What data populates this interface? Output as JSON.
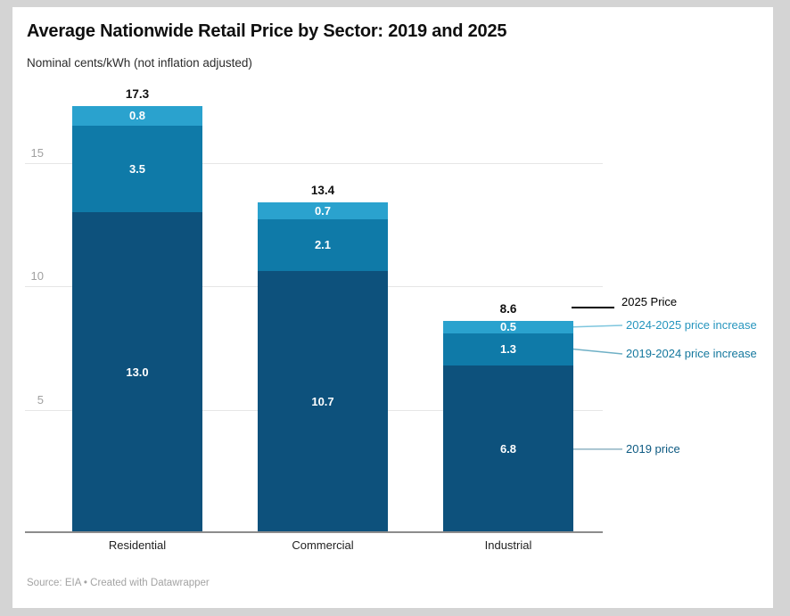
{
  "page": {
    "background_color": "#d4d4d4",
    "card_color": "#ffffff"
  },
  "header": {
    "title": "Average Nationwide Retail Price by Sector: 2019 and 2025",
    "subtitle": "Nominal cents/kWh (not inflation adjusted)"
  },
  "footer": {
    "source": "Source: EIA • Created with Datawrapper"
  },
  "legend": {
    "position": "right",
    "items": [
      {
        "label": "2025 Price",
        "text_color": "#000000",
        "line_color": "#000000",
        "key": "black-line"
      },
      {
        "label": "2024-2025 price increase",
        "text_color": "#2695be",
        "line_color": "#7ec6de",
        "key": "connector"
      },
      {
        "label": "2019-2024 price increase",
        "text_color": "#15789e",
        "line_color": "#6fb0c6",
        "key": "connector"
      },
      {
        "label": "2019 price",
        "text_color": "#0d5a82",
        "line_color": "#8fb3c3",
        "key": "connector"
      }
    ]
  },
  "chart_data": {
    "type": "bar",
    "stacked": true,
    "title": "Average Nationwide Retail Price by Sector: 2019 and 2025",
    "subtitle": "Nominal cents/kWh (not inflation adjusted)",
    "categories": [
      "Residential",
      "Commercial",
      "Industrial"
    ],
    "series": [
      {
        "name": "2019 price",
        "color": "#0d517c",
        "values": [
          13.0,
          10.7,
          6.8
        ]
      },
      {
        "name": "2019-2024 price increase",
        "color": "#0f7aa8",
        "values": [
          3.5,
          2.1,
          1.3
        ]
      },
      {
        "name": "2024-2025 price increase",
        "color": "#2aa2ce",
        "values": [
          0.8,
          0.7,
          0.5
        ]
      }
    ],
    "totals": [
      17.3,
      13.4,
      8.6
    ],
    "y_ticks": [
      5,
      10,
      15
    ],
    "ylim": [
      0,
      18
    ],
    "grid": "horizontal",
    "legend_position": "right",
    "value_labels": "inside-segments",
    "xlabel": "",
    "ylabel": "Nominal cents/kWh"
  }
}
